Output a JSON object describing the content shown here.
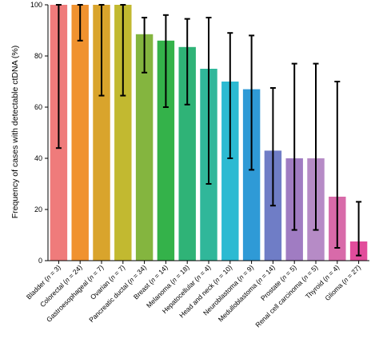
{
  "chart_data": {
    "type": "bar",
    "title": "",
    "xlabel": "",
    "ylabel": "Frequency of cases with detectable ctDNA (%)",
    "ylim": [
      0,
      100
    ],
    "yticks": [
      "0",
      "20",
      "40",
      "60",
      "80",
      "100"
    ],
    "grid": false,
    "categories": [
      {
        "name": "Bladder",
        "n": "3"
      },
      {
        "name": "Colorectal",
        "n": "24"
      },
      {
        "name": "Gastroesophageal",
        "n": "7"
      },
      {
        "name": "Ovarian",
        "n": "7"
      },
      {
        "name": "Pancreatic ductal",
        "n": "34"
      },
      {
        "name": "Breast",
        "n": "14"
      },
      {
        "name": "Melanoma",
        "n": "18"
      },
      {
        "name": "Hepatocellular",
        "n": "4"
      },
      {
        "name": "Head and neck",
        "n": "10"
      },
      {
        "name": "Neuroblastoma",
        "n": "9"
      },
      {
        "name": "Medulloblastoma",
        "n": "14"
      },
      {
        "name": "Prostate",
        "n": "5"
      },
      {
        "name": "Renal cell carcinoma",
        "n": "5"
      },
      {
        "name": "Thyroid",
        "n": "4"
      },
      {
        "name": "Glioma",
        "n": "27"
      }
    ],
    "values": [
      100,
      100,
      100,
      100,
      88.5,
      86,
      83.5,
      75,
      70,
      67,
      43,
      40,
      40,
      25,
      7.5
    ],
    "error_low": [
      44,
      86,
      64.5,
      64.5,
      73.5,
      60,
      61,
      30,
      40,
      35.5,
      21.5,
      12,
      12,
      5,
      2
    ],
    "error_high": [
      100,
      100,
      100,
      100,
      95,
      96,
      94.5,
      95,
      89,
      88,
      67.5,
      77,
      77,
      70,
      23
    ],
    "colors": [
      "#ef7b7b",
      "#f0922f",
      "#d9a42c",
      "#c2b930",
      "#84b53f",
      "#34b24a",
      "#2fb377",
      "#30b79a",
      "#2cbad2",
      "#2f9ad6",
      "#6f7dc6",
      "#a07cc2",
      "#b68bc6",
      "#d86aa9",
      "#e24c9b"
    ]
  }
}
